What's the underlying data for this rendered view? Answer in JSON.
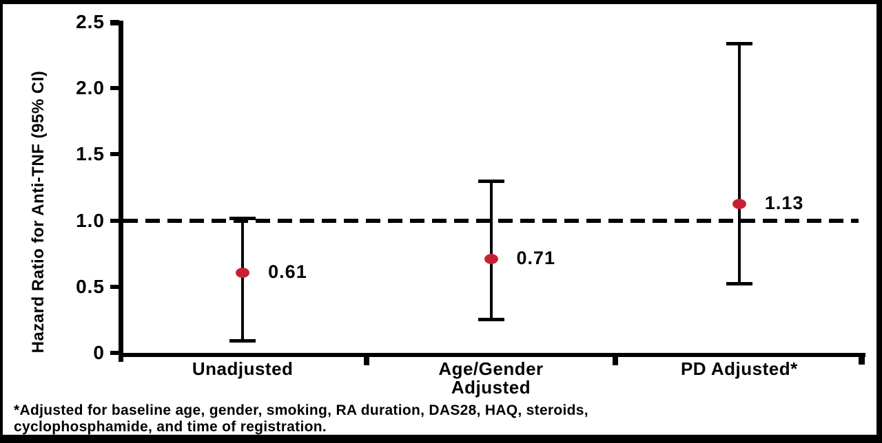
{
  "figure": {
    "footnote": "*Adjusted for baseline age, gender, smoking, RA duration, DAS28, HAQ, steroids,\ncyclophosphamide, and time of registration."
  },
  "chart_data": {
    "type": "scatter",
    "subtype": "forest-plot-with-error-bars",
    "title": "",
    "xlabel": "",
    "ylabel": "Hazard Ratio for Anti-TNF (95% CI)",
    "categories": [
      "Unadjusted",
      "Age/Gender\nAdjusted",
      "PD Adjusted*"
    ],
    "points": [
      {
        "category": "Unadjusted",
        "value": 0.61,
        "ci_low": 0.09,
        "ci_high": 1.02,
        "label": "0.61"
      },
      {
        "category": "Age/Gender Adjusted",
        "value": 0.71,
        "ci_low": 0.25,
        "ci_high": 1.3,
        "label": "0.71"
      },
      {
        "category": "PD Adjusted*",
        "value": 1.13,
        "ci_low": 0.52,
        "ci_high": 2.34,
        "label": "1.13"
      }
    ],
    "yticks": [
      "2.5",
      "2.0",
      "1.5",
      "1.0",
      "0.5",
      "0"
    ],
    "ytick_values": [
      2.5,
      2.0,
      1.5,
      1.0,
      0.5,
      0
    ],
    "ylim": [
      0,
      2.5
    ],
    "reference_line": 1.0,
    "grid": false,
    "legend": false,
    "marker_color": "#C62133",
    "axis_color": "#000000",
    "reference_line_style": "dashed"
  }
}
